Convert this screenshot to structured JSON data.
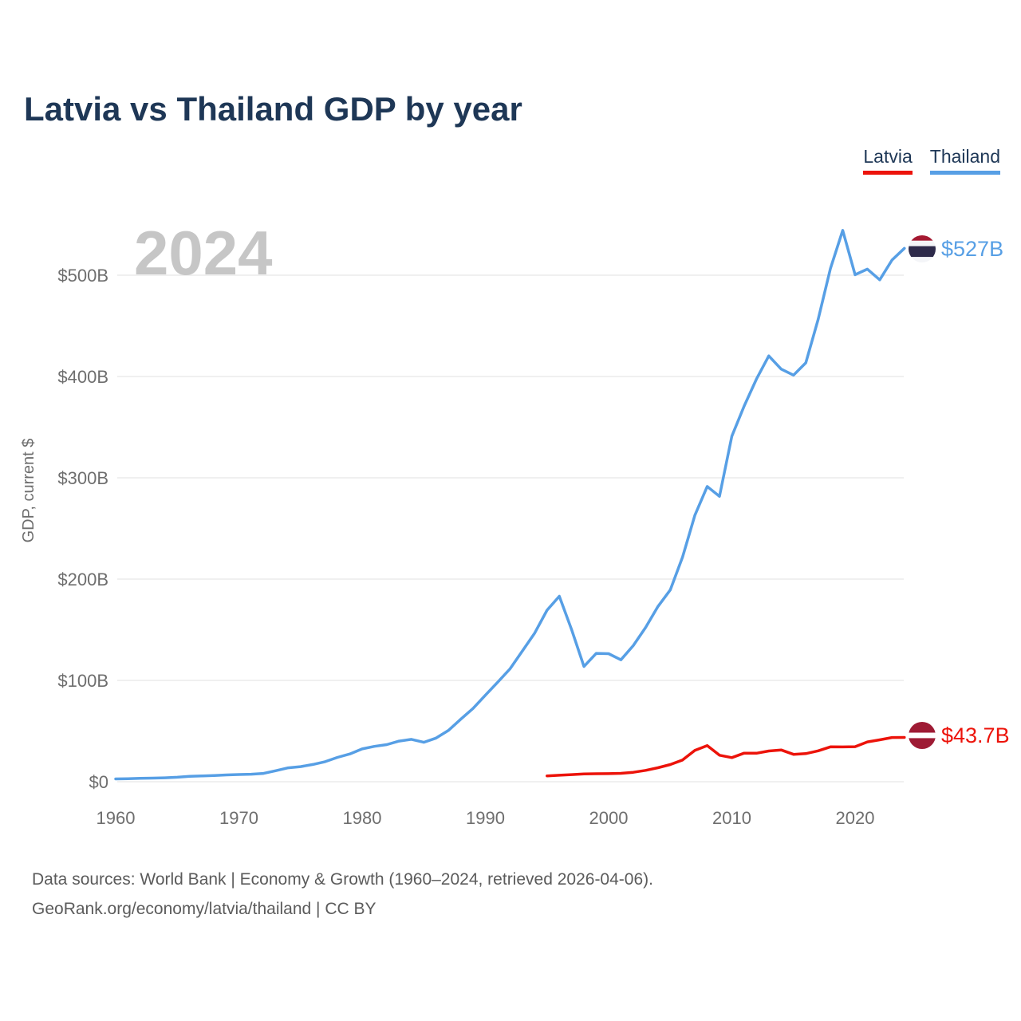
{
  "title": "Latvia vs Thailand GDP by year",
  "watermark": "2024",
  "footer": {
    "line1": "Data sources: World Bank | Economy & Growth (1960–2024, retrieved 2026-04-06).",
    "line2": "GeoRank.org/economy/latvia/thailand | CC BY"
  },
  "colors": {
    "title_text": "#1e3756",
    "tick_text": "#6e6e6e",
    "gridline": "#ebebeb",
    "watermark": "#c6c6c6",
    "latvia_red": "#ec130a",
    "thailand_blue": "#579fe5",
    "latvia_flag_carmine": "#9e1b34",
    "thailand_flag_red": "#a51931",
    "thailand_flag_blue": "#2d2a4a",
    "thailand_flag_white": "#f4f5f8"
  },
  "chart_data": {
    "type": "line",
    "title": "Latvia vs Thailand GDP by year",
    "xlabel": "",
    "ylabel": "GDP, current $",
    "grid": "horizontal",
    "legend_position": "top-right",
    "x_range": [
      1960,
      2024
    ],
    "ylim": [
      0,
      560
    ],
    "x_ticks": [
      1960,
      1970,
      1980,
      1990,
      2000,
      2010,
      2020
    ],
    "y_ticks": [
      {
        "value": 0,
        "label": "$0"
      },
      {
        "value": 100,
        "label": "$100B"
      },
      {
        "value": 200,
        "label": "$200B"
      },
      {
        "value": 300,
        "label": "$300B"
      },
      {
        "value": 400,
        "label": "$400B"
      },
      {
        "value": 500,
        "label": "$500B"
      }
    ],
    "unit": "billion current US$",
    "series": [
      {
        "name": "Latvia",
        "color": "#ec130a",
        "start_year": 1995,
        "end_label": "$43.7B",
        "values": [
          5.78,
          6.35,
          6.97,
          7.65,
          7.85,
          7.93,
          8.23,
          9.31,
          11.19,
          13.76,
          16.92,
          21.44,
          30.95,
          35.65,
          26.17,
          23.76,
          28.22,
          28.12,
          30.31,
          31.35,
          27.0,
          27.69,
          30.48,
          34.41,
          34.32,
          34.6,
          39.33,
          41.34,
          43.63,
          43.7
        ]
      },
      {
        "name": "Thailand",
        "color": "#579fe5",
        "start_year": 1960,
        "end_label": "$527B",
        "values": [
          2.76,
          3.03,
          3.31,
          3.54,
          3.89,
          4.39,
          5.28,
          5.64,
          6.08,
          6.7,
          7.09,
          7.37,
          8.18,
          10.84,
          13.7,
          14.88,
          16.98,
          19.77,
          24.01,
          27.37,
          32.35,
          34.85,
          36.59,
          40.04,
          41.8,
          38.9,
          43.1,
          50.54,
          61.67,
          72.25,
          85.34,
          98.23,
          111.45,
          128.89,
          146.68,
          169.28,
          183.04,
          150.18,
          113.68,
          126.67,
          126.39,
          120.3,
          134.3,
          152.28,
          172.9,
          189.32,
          221.76,
          262.94,
          291.38,
          281.71,
          341.1,
          370.82,
          397.56,
          420.33,
          407.34,
          401.3,
          413.43,
          456.36,
          506.61,
          544.26,
          500.46,
          505.98,
          495.42,
          514.97,
          526.55
        ]
      }
    ]
  }
}
